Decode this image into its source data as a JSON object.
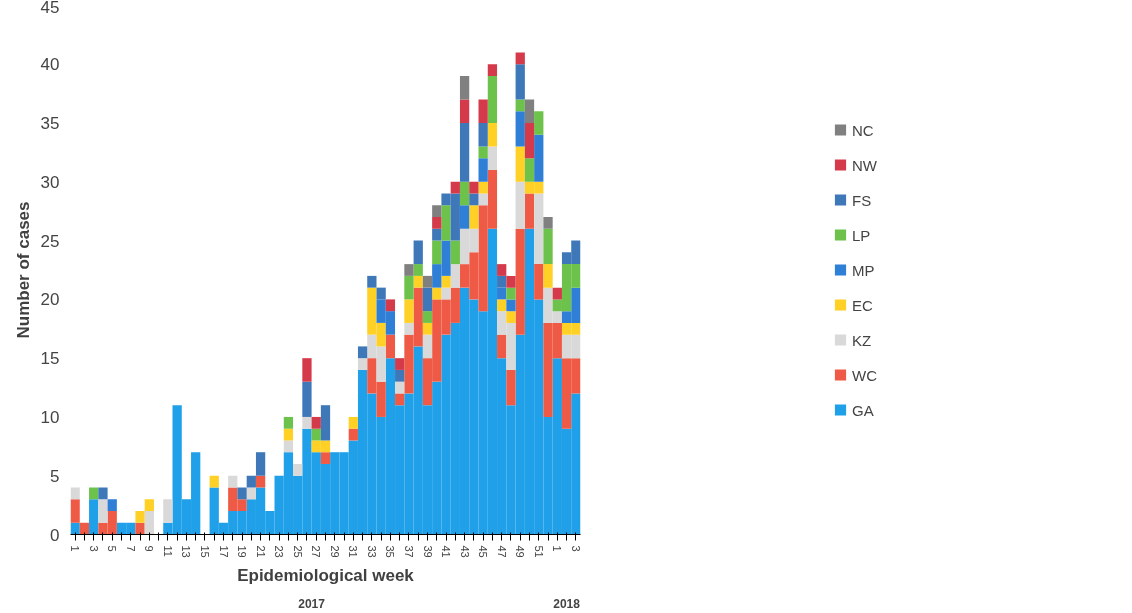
{
  "chart_data": {
    "type": "bar",
    "stacked": true,
    "xlabel": "Epidemiological week",
    "ylabel": "Number of cases",
    "categories": [
      "1",
      null,
      "3",
      null,
      "5",
      null,
      "7",
      null,
      "9",
      null,
      "11",
      null,
      "13",
      null,
      "15",
      null,
      "17",
      null,
      "19",
      null,
      "21",
      null,
      "23",
      null,
      "25",
      null,
      "27",
      null,
      "29",
      null,
      "31",
      null,
      "33",
      null,
      "35",
      null,
      "37",
      null,
      "39",
      null,
      "41",
      null,
      "43",
      null,
      "45",
      null,
      "47",
      null,
      "49",
      null,
      "51",
      null,
      "1",
      null,
      "3"
    ],
    "annotations": [
      "2017",
      "2018"
    ],
    "ylim": [
      0,
      45
    ],
    "yticks": [
      0,
      5,
      10,
      15,
      20,
      25,
      30,
      35,
      40,
      45
    ],
    "grid": false,
    "legend": "right",
    "series": [
      {
        "name": "GA",
        "color": "#1fa0e8",
        "values": [
          1,
          0,
          3,
          0,
          0,
          1,
          1,
          0,
          0,
          0,
          1,
          11,
          3,
          7,
          0,
          4,
          1,
          2,
          2,
          3,
          4,
          2,
          5,
          7,
          5,
          9,
          7,
          6,
          7,
          7,
          8,
          14,
          12,
          10,
          15,
          11,
          12,
          16,
          11,
          13,
          17,
          18,
          21,
          20,
          19,
          26,
          15,
          11,
          17,
          26,
          20,
          10,
          15,
          9,
          12
        ]
      },
      {
        "name": "WC",
        "color": "#ee5a45",
        "values": [
          2,
          1,
          0,
          1,
          2,
          0,
          0,
          1,
          0,
          0,
          0,
          0,
          0,
          0,
          0,
          0,
          0,
          2,
          1,
          0,
          1,
          0,
          0,
          0,
          0,
          0,
          0,
          1,
          0,
          0,
          1,
          0,
          3,
          3,
          2,
          1,
          5,
          5,
          4,
          7,
          3,
          3,
          2,
          4,
          9,
          5,
          2,
          3,
          9,
          3,
          3,
          8,
          3,
          6,
          3
        ]
      },
      {
        "name": "KZ",
        "color": "#d9d9d9",
        "values": [
          1,
          0,
          0,
          2,
          0,
          0,
          0,
          0,
          2,
          0,
          2,
          0,
          0,
          0,
          0,
          0,
          0,
          1,
          0,
          1,
          0,
          0,
          0,
          1,
          1,
          1,
          0,
          0,
          0,
          0,
          0,
          1,
          2,
          3,
          0,
          1,
          1,
          0,
          2,
          0,
          1,
          2,
          3,
          2,
          1,
          2,
          2,
          4,
          4,
          0,
          6,
          3,
          1,
          2,
          2
        ]
      },
      {
        "name": "EC",
        "color": "#ffd026",
        "values": [
          0,
          0,
          0,
          0,
          0,
          0,
          0,
          1,
          1,
          0,
          0,
          0,
          0,
          0,
          0,
          1,
          0,
          0,
          0,
          0,
          0,
          0,
          0,
          1,
          0,
          0,
          1,
          1,
          0,
          0,
          1,
          0,
          4,
          2,
          0,
          0,
          2,
          1,
          1,
          1,
          1,
          0,
          0,
          2,
          1,
          2,
          1,
          1,
          3,
          1,
          1,
          2,
          0,
          1,
          1
        ]
      },
      {
        "name": "MP",
        "color": "#2f7fd6",
        "values": [
          0,
          0,
          0,
          0,
          1,
          0,
          0,
          0,
          0,
          0,
          0,
          0,
          0,
          0,
          0,
          0,
          0,
          0,
          0,
          0,
          0,
          0,
          0,
          0,
          0,
          0,
          0,
          0,
          0,
          0,
          0,
          0,
          0,
          2,
          2,
          0,
          0,
          0,
          0,
          2,
          3,
          0,
          2,
          0,
          2,
          0,
          1,
          1,
          3,
          0,
          4,
          0,
          0,
          1,
          3
        ]
      },
      {
        "name": "LP",
        "color": "#6cc24a",
        "values": [
          0,
          0,
          1,
          0,
          0,
          0,
          0,
          0,
          0,
          0,
          0,
          0,
          0,
          0,
          0,
          0,
          0,
          0,
          0,
          0,
          0,
          0,
          0,
          1,
          0,
          0,
          1,
          0,
          0,
          0,
          0,
          0,
          0,
          0,
          0,
          0,
          2,
          1,
          1,
          2,
          3,
          2,
          2,
          0,
          1,
          4,
          0,
          1,
          1,
          2,
          2,
          3,
          1,
          4,
          2
        ]
      },
      {
        "name": "FS",
        "color": "#3f78b8",
        "values": [
          0,
          0,
          0,
          1,
          0,
          0,
          0,
          0,
          0,
          0,
          0,
          0,
          0,
          0,
          0,
          0,
          0,
          0,
          1,
          1,
          2,
          0,
          0,
          0,
          0,
          3,
          0,
          3,
          0,
          0,
          0,
          1,
          1,
          1,
          0,
          1,
          0,
          2,
          2,
          1,
          1,
          4,
          5,
          1,
          2,
          0,
          1,
          0,
          3,
          0,
          0,
          0,
          0,
          1,
          2
        ]
      },
      {
        "name": "NW",
        "color": "#d43a4a",
        "values": [
          0,
          0,
          0,
          0,
          0,
          0,
          0,
          0,
          0,
          0,
          0,
          0,
          0,
          0,
          0,
          0,
          0,
          0,
          0,
          0,
          0,
          0,
          0,
          0,
          0,
          2,
          1,
          0,
          0,
          0,
          0,
          0,
          0,
          0,
          1,
          1,
          0,
          0,
          0,
          1,
          0,
          1,
          2,
          1,
          2,
          1,
          1,
          1,
          1,
          3,
          0,
          0,
          1,
          0,
          0
        ]
      },
      {
        "name": "NC",
        "color": "#808080",
        "values": [
          0,
          0,
          0,
          0,
          0,
          0,
          0,
          0,
          0,
          0,
          0,
          0,
          0,
          0,
          0,
          0,
          0,
          0,
          0,
          0,
          0,
          0,
          0,
          0,
          0,
          0,
          0,
          0,
          0,
          0,
          0,
          0,
          0,
          0,
          0,
          0,
          1,
          0,
          1,
          1,
          0,
          0,
          2,
          0,
          0,
          0,
          0,
          0,
          0,
          2,
          0,
          1,
          0,
          0,
          0
        ]
      }
    ]
  }
}
